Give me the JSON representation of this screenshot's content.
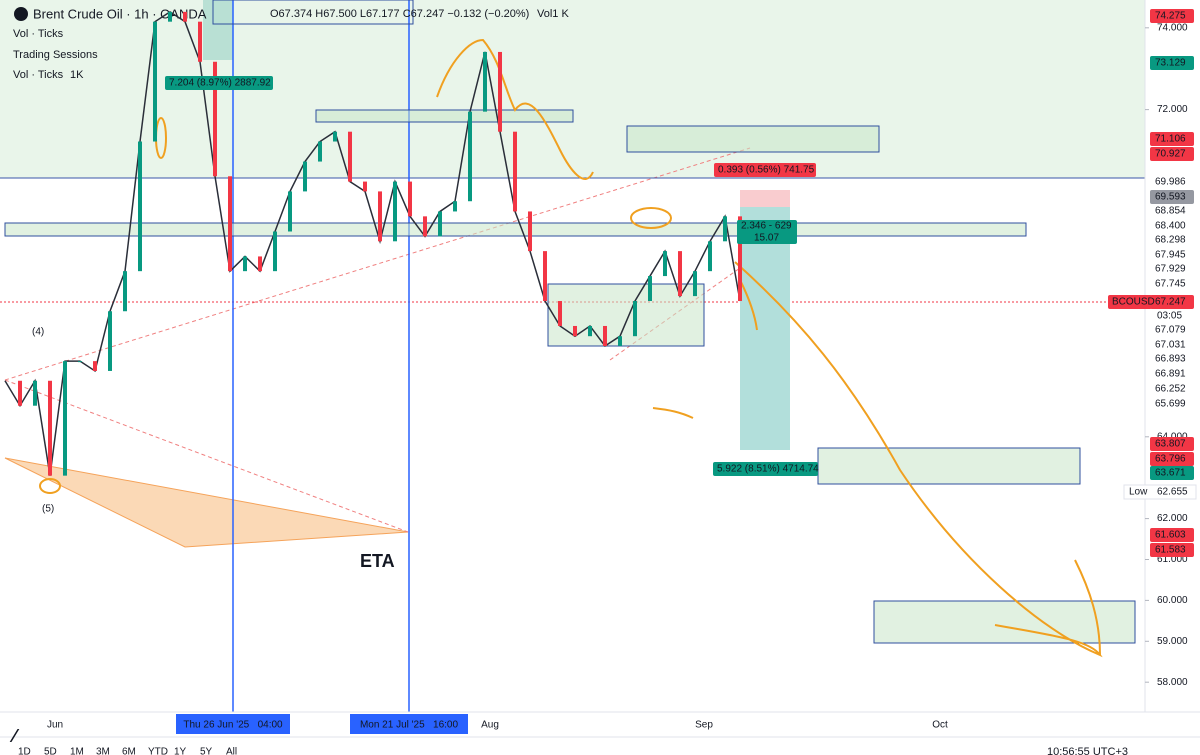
{
  "chart_data": {
    "type": "line",
    "title": "Brent Crude Oil · 1h · OANDA",
    "ohlc": "O67.374 H67.500 L67.177 C67.247 −0.132 (−0.20%)",
    "volume_label": "Vol1 K",
    "indicators": [
      {
        "name": "Vol · Ticks"
      },
      {
        "name": "Trading Sessions"
      },
      {
        "name": "Vol · Ticks",
        "label": "1K"
      }
    ],
    "series": [
      {
        "name": "BCOUSD",
        "color": "#2a2e39",
        "values": [
          65.37,
          64.76,
          65.37,
          63.05,
          65.85,
          65.85,
          65.61,
          67.07,
          68.05,
          71.22,
          74.15,
          74.39,
          74.15,
          73.17,
          70.37,
          68.05,
          68.41,
          68.05,
          69.02,
          70.0,
          70.73,
          71.22,
          71.46,
          70.24,
          70.0,
          68.78,
          70.24,
          69.39,
          68.9,
          69.51,
          69.76,
          71.95,
          73.41,
          71.46,
          69.51,
          68.54,
          67.32,
          66.71,
          66.46,
          66.71,
          66.22,
          66.46,
          67.32,
          67.93,
          68.54,
          67.44,
          68.05,
          68.78,
          69.39,
          67.32
        ]
      }
    ],
    "x_labels": [
      "Jun",
      "Thu 26 Jun '25   04:00",
      "Mon 21 Jul '25   16:00",
      "Aug",
      "Sep",
      "Oct"
    ],
    "ylim": [
      57.32,
      74.68
    ],
    "yticks": [
      {
        "value": 74,
        "label": "74.000"
      },
      {
        "value": 72,
        "label": "72.000"
      },
      {
        "value": 64,
        "label": "64.000"
      },
      {
        "value": 62,
        "label": "62.000"
      },
      {
        "value": 61,
        "label": "61.000"
      },
      {
        "value": 60,
        "label": "60.000"
      },
      {
        "value": 59,
        "label": "59.000"
      },
      {
        "value": 58,
        "label": "58.000"
      }
    ],
    "price_tags": [
      {
        "value": 74.275,
        "color": "#f23645"
      },
      {
        "value": 73.129,
        "color": "#089981"
      },
      {
        "value": 71.106,
        "color": "#f23645"
      },
      {
        "value": 70.927,
        "color": "#f23645"
      },
      {
        "value": 69.986
      },
      {
        "value": 69.593,
        "color": "#9598a1"
      },
      {
        "value": 68.854
      },
      {
        "value": 68.4,
        "label": "68.400"
      },
      {
        "value": 68.298
      },
      {
        "value": 67.945
      },
      {
        "value": 67.929
      },
      {
        "value": 67.745
      },
      {
        "value": 67.247,
        "color": "#f23645"
      },
      {
        "value": 67.079
      },
      {
        "value": 67.031
      },
      {
        "value": 66.893
      },
      {
        "value": 66.891
      },
      {
        "value": 66.252
      },
      {
        "value": 65.699
      },
      {
        "value": 63.807,
        "color": "#f23645"
      },
      {
        "value": 63.796,
        "color": "#f23645"
      },
      {
        "value": 63.671,
        "color": "#089981"
      },
      {
        "value": 61.603,
        "color": "#f23645"
      },
      {
        "value": 61.583,
        "color": "#f23645"
      }
    ],
    "countdown": "03:05",
    "low": {
      "label": "Low",
      "value": 62.655
    },
    "annotations": [
      "7.204 (8.97%) 2887.92",
      "0.393 (0.56%) 741.75",
      "2.346 - 629",
      "15.07",
      "5.922 (8.51%) 4714.74",
      "ETA",
      "(4)",
      "(5)",
      "BCOUSD"
    ],
    "timeframes": [
      "1D",
      "5D",
      "1M",
      "3M",
      "6M",
      "YTD",
      "1Y",
      "5Y",
      "All"
    ],
    "clock": "10:56:55 UTC+3"
  }
}
